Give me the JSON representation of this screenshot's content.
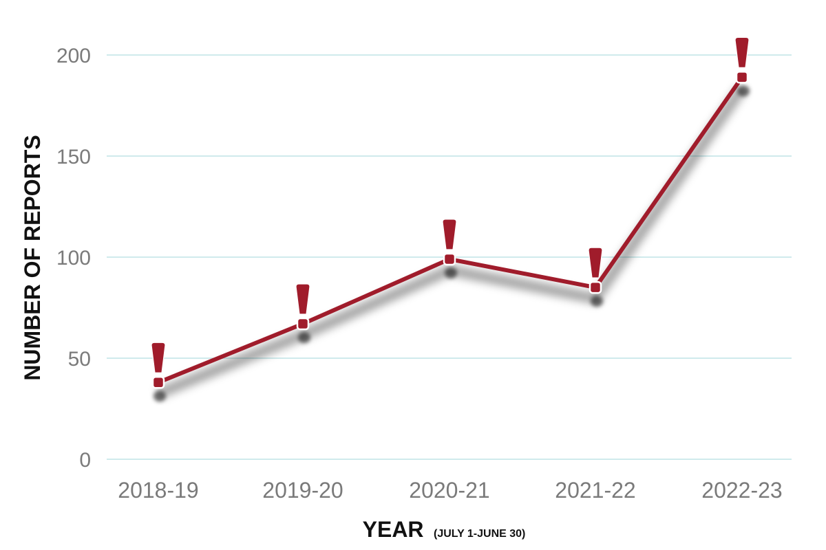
{
  "chart_data": {
    "type": "line",
    "categories": [
      "2018-19",
      "2019-20",
      "2020-21",
      "2021-22",
      "2022-23"
    ],
    "series": [
      {
        "values": [
          38,
          67,
          99,
          85,
          189
        ]
      }
    ],
    "ylabel": "NUMBER OF REPORTS",
    "xlabel": "YEAR",
    "xlabel_note": "(JULY 1-JUNE 30)",
    "yticks": [
      "0",
      "50",
      "100",
      "150",
      "200"
    ],
    "ylim": [
      0,
      200
    ],
    "grid": true,
    "marker_icon": "exclamation-icon",
    "colors": {
      "line": "#a01c2b",
      "grid": "#bfe3e6",
      "tick_text": "#7a7a7a",
      "label_text": "#111111"
    }
  }
}
